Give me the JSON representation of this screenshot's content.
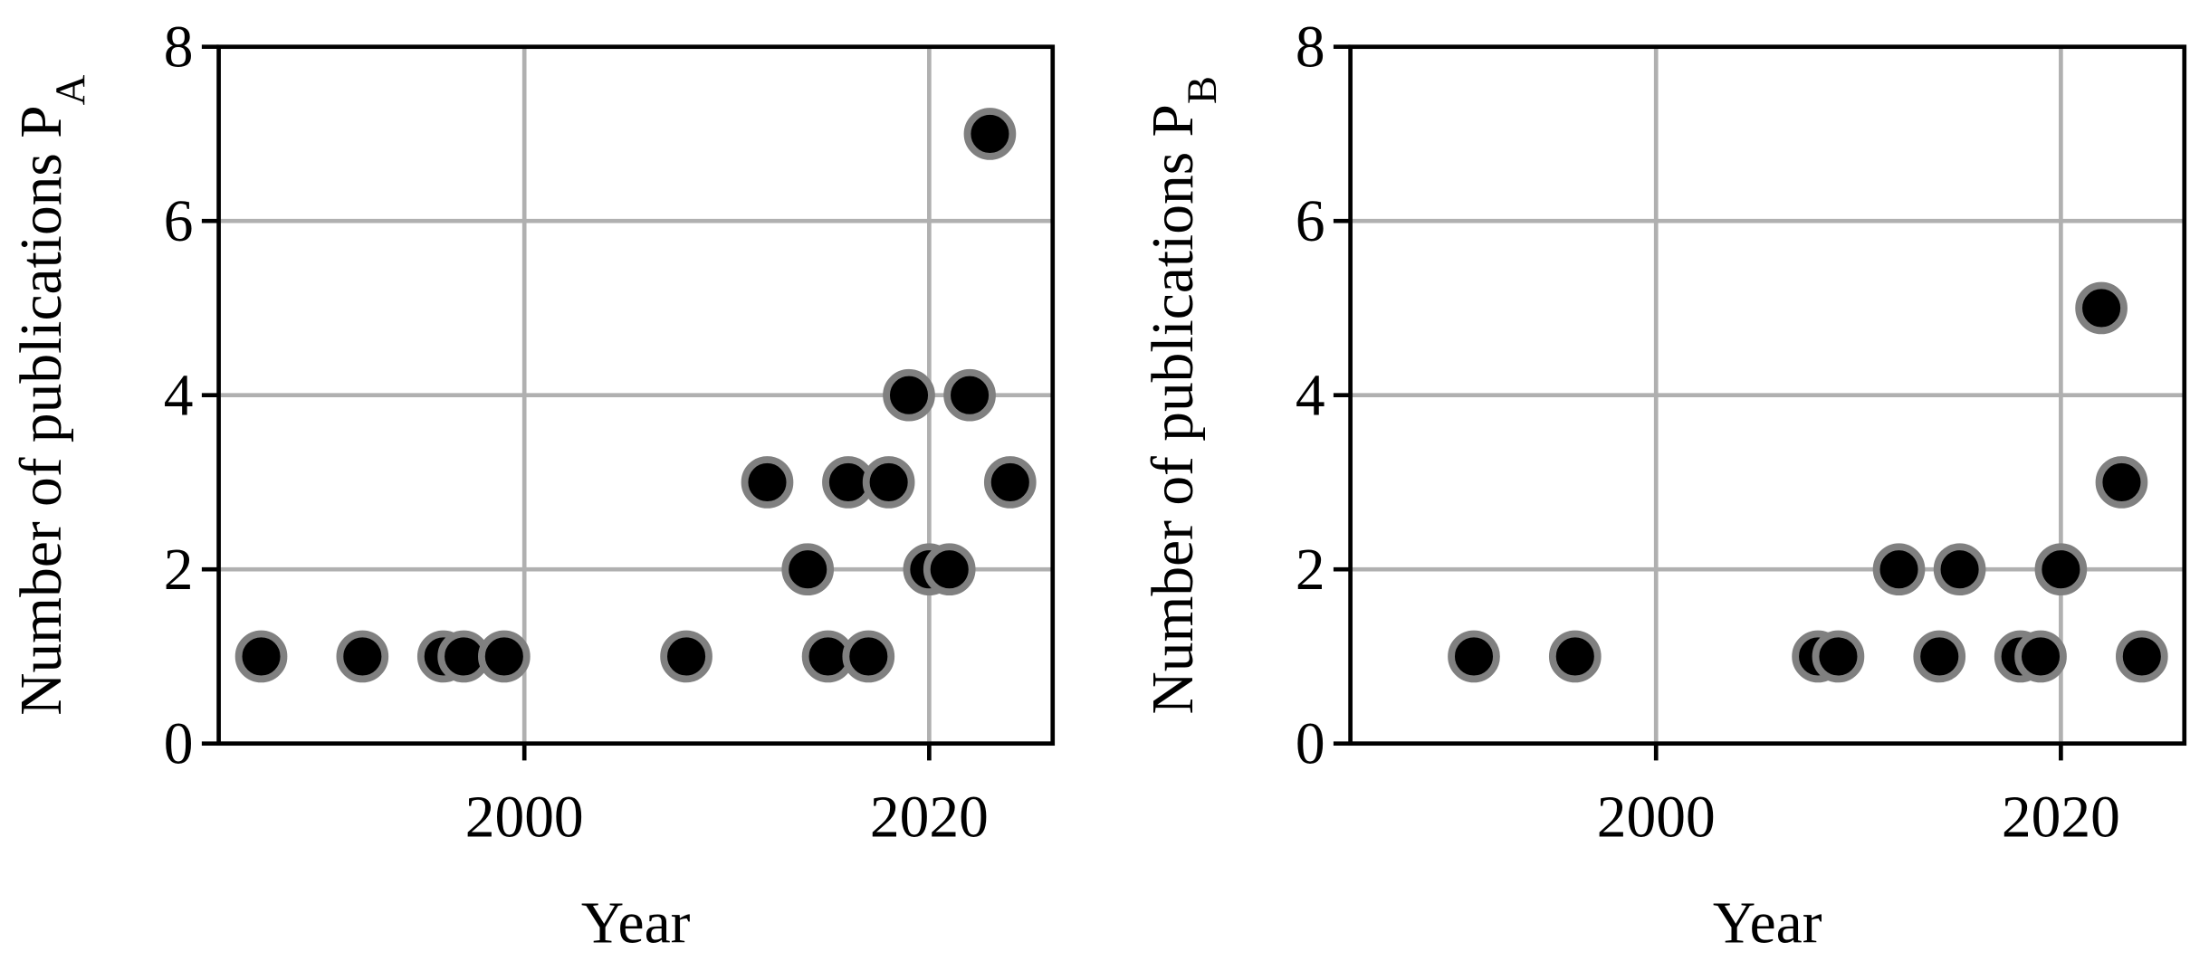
{
  "chart_data": [
    {
      "type": "scatter",
      "ylabel": "Number of publications P",
      "ylabel_subscript": "A",
      "xlabel": "Year",
      "x": [
        1987,
        1992,
        1996,
        1997,
        1999,
        2008,
        2012,
        2014,
        2015,
        2016,
        2017,
        2018,
        2019,
        2020,
        2021,
        2022,
        2023,
        2024
      ],
      "values": [
        1,
        1,
        1,
        1,
        1,
        1,
        3,
        2,
        1,
        3,
        1,
        3,
        4,
        2,
        2,
        4,
        7,
        3
      ],
      "color": "#000000",
      "edgecolor": "#808080",
      "xlim": [
        1984.9,
        2026.1
      ],
      "xticks": [
        2000,
        2020
      ],
      "ylim": [
        0,
        8
      ],
      "yticks": [
        0,
        2,
        4,
        6,
        8
      ],
      "grid": true
    },
    {
      "type": "scatter",
      "ylabel": "Number of publications P",
      "ylabel_subscript": "B",
      "xlabel": "Year",
      "x": [
        1991,
        1996,
        2008,
        2009,
        2012,
        2014,
        2015,
        2018,
        2019,
        2020,
        2022,
        2023,
        2024
      ],
      "values": [
        1,
        1,
        1,
        1,
        2,
        1,
        2,
        1,
        1,
        2,
        5,
        3,
        1
      ],
      "color": "#000000",
      "edgecolor": "#808080",
      "xlim": [
        1984.9,
        2026.1
      ],
      "xticks": [
        2000,
        2020
      ],
      "ylim": [
        0,
        8
      ],
      "yticks": [
        0,
        2,
        4,
        6,
        8
      ],
      "grid": true
    }
  ]
}
